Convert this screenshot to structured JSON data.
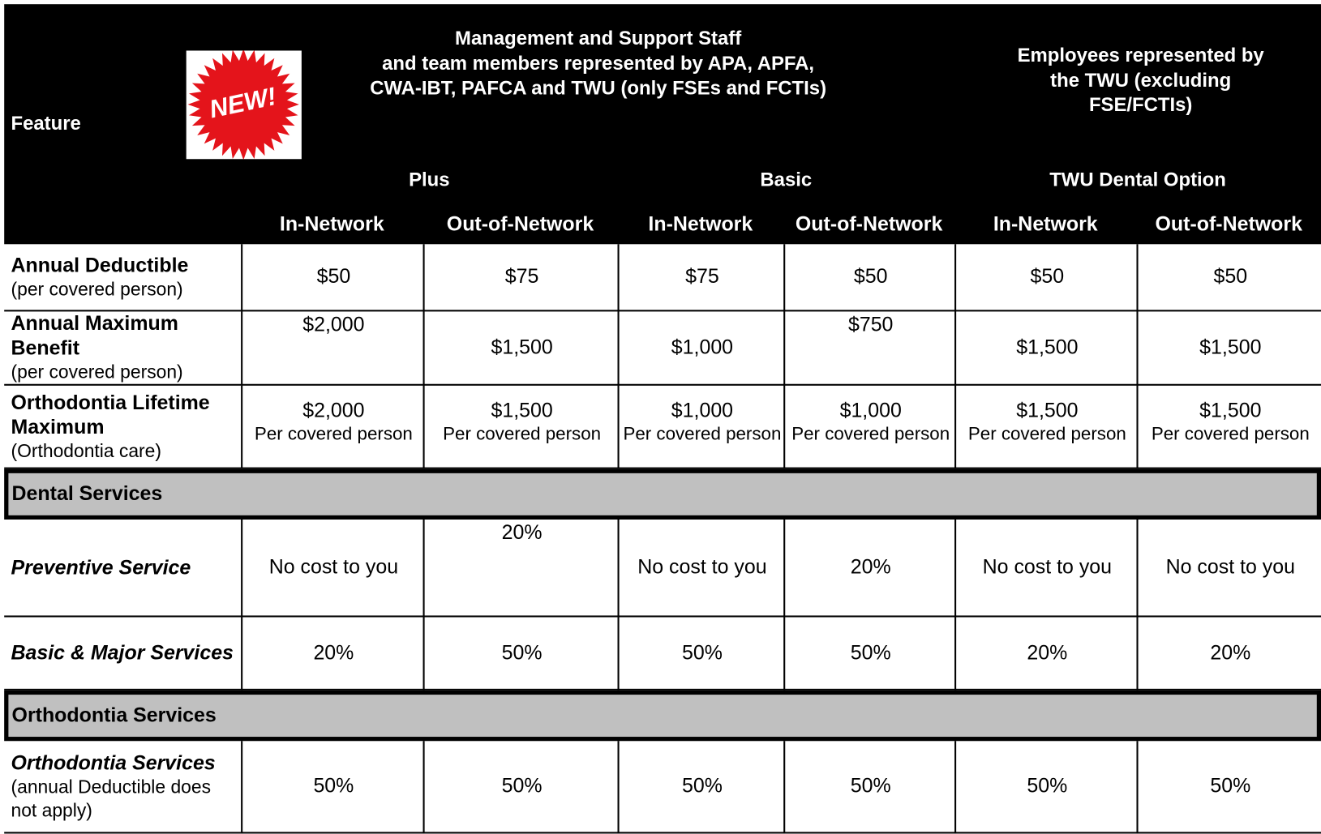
{
  "header": {
    "feature": "Feature",
    "badge": "NEW!",
    "groups": [
      "Management and Support Staff\nand team members represented by APA, APFA,\nCWA-IBT, PAFCA and TWU (only FSEs and FCTIs)",
      "Employees represented by\nthe TWU (excluding\nFSE/FCTIs)"
    ],
    "plans": [
      "Plus",
      "Basic",
      "TWU Dental Option"
    ],
    "networks": [
      "In-Network",
      "Out-of-Network",
      "In-Network",
      "Out-of-Network",
      "In-Network",
      "Out-of-Network"
    ]
  },
  "table": {
    "rows": [
      {
        "feature": {
          "title": "Annual Deductible",
          "note": "(per covered person)"
        },
        "cells": [
          "$50",
          "$75",
          "$75",
          "$50",
          "$50",
          "$50"
        ]
      },
      {
        "feature": {
          "title": "Annual Maximum Benefit",
          "note": "(per covered person)"
        },
        "cells": [
          "$2,000",
          "$1,500",
          "$1,000",
          "$750",
          "$1,500",
          "$1,500"
        ]
      },
      {
        "feature": {
          "title": "Orthodontia Lifetime Maximum",
          "note": "(Orthodontia care)"
        },
        "cells": [
          {
            "value": "$2,000",
            "note": "Per covered person"
          },
          {
            "value": "$1,500",
            "note": "Per covered person"
          },
          {
            "value": "$1,000",
            "note": "Per covered person"
          },
          {
            "value": "$1,000",
            "note": "Per covered person"
          },
          {
            "value": "$1,500",
            "note": "Per covered person"
          },
          {
            "value": "$1,500",
            "note": "Per covered person"
          }
        ]
      },
      {
        "section": "Dental Services"
      },
      {
        "feature": {
          "title": "Preventive Service"
        },
        "cells": [
          "No cost to you",
          "20%",
          "No cost to you",
          "20%",
          "No cost to you",
          "No cost to you"
        ]
      },
      {
        "feature": {
          "title": "Basic & Major Services"
        },
        "cells": [
          "20%",
          "50%",
          "50%",
          "50%",
          "20%",
          "20%"
        ]
      },
      {
        "section": "Orthodontia Services"
      },
      {
        "feature": {
          "title": "Orthodontia Services",
          "note": "(annual Deductible does not apply)"
        },
        "cells": [
          "50%",
          "50%",
          "50%",
          "50%",
          "50%",
          "50%"
        ]
      }
    ]
  }
}
